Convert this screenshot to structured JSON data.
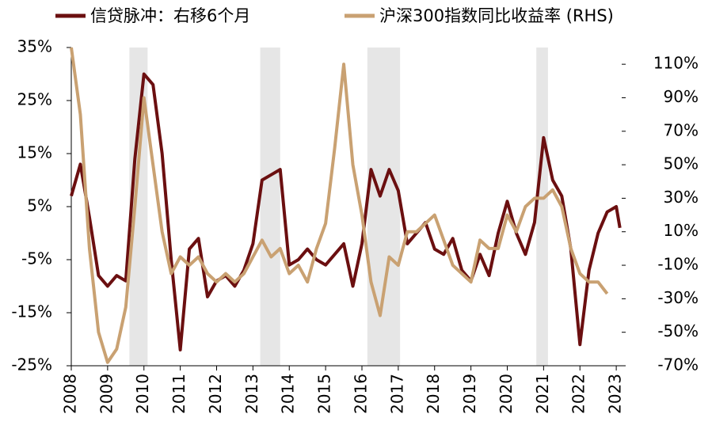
{
  "chart_data": {
    "type": "line",
    "x": [
      2008.0,
      2008.25,
      2008.5,
      2008.75,
      2009.0,
      2009.25,
      2009.5,
      2009.75,
      2010.0,
      2010.25,
      2010.5,
      2010.75,
      2011.0,
      2011.25,
      2011.5,
      2011.75,
      2012.0,
      2012.25,
      2012.5,
      2012.75,
      2013.0,
      2013.25,
      2013.5,
      2013.75,
      2014.0,
      2014.25,
      2014.5,
      2014.75,
      2015.0,
      2015.25,
      2015.5,
      2015.75,
      2016.0,
      2016.25,
      2016.5,
      2016.75,
      2017.0,
      2017.25,
      2017.5,
      2017.75,
      2018.0,
      2018.25,
      2018.5,
      2018.75,
      2019.0,
      2019.25,
      2019.5,
      2019.75,
      2020.0,
      2020.25,
      2020.5,
      2020.75,
      2021.0,
      2021.25,
      2021.5,
      2021.75,
      2022.0,
      2022.25,
      2022.5,
      2022.75,
      2023.0,
      2023.1
    ],
    "series": [
      {
        "name": "信贷脉冲：右移6个月",
        "color": "#6b0f10",
        "axis": "y",
        "values": [
          7,
          13,
          3,
          -8,
          -10,
          -8,
          -9,
          14,
          30,
          28,
          15,
          -5,
          -22,
          -3,
          -1,
          -12,
          -9,
          -8,
          -10,
          -7,
          -2,
          10,
          11,
          12,
          -6,
          -5,
          -3,
          -5,
          -6,
          -4,
          -2,
          -10,
          -2,
          12,
          7,
          12,
          8,
          -2,
          0,
          2,
          -3,
          -4,
          -1,
          -7,
          -9,
          -4,
          -8,
          0,
          6,
          0,
          -4,
          2,
          18,
          10,
          7,
          -3,
          -21,
          -7,
          0,
          4,
          5,
          1
        ]
      },
      {
        "name": "沪深300指数同比收益率 (RHS)",
        "color": "#c9a172",
        "axis": "y2",
        "values": [
          120,
          80,
          0,
          -50,
          -68,
          -60,
          -35,
          25,
          90,
          50,
          10,
          -15,
          -5,
          -10,
          -5,
          -15,
          -20,
          -15,
          -20,
          -15,
          -5,
          5,
          -5,
          0,
          -15,
          -10,
          -20,
          0,
          15,
          60,
          110,
          50,
          20,
          -20,
          -40,
          -5,
          -10,
          10,
          10,
          15,
          20,
          5,
          -10,
          -15,
          -20,
          5,
          0,
          0,
          20,
          10,
          25,
          30,
          30,
          35,
          25,
          0,
          -15,
          -20,
          -20,
          -27,
          null,
          null
        ]
      }
    ],
    "xlim": [
      2008,
      2023.15
    ],
    "xticks": [
      2008,
      2009,
      2010,
      2011,
      2012,
      2013,
      2014,
      2015,
      2016,
      2017,
      2018,
      2019,
      2020,
      2021,
      2022,
      2023
    ],
    "ylim": [
      -25,
      35
    ],
    "yticks": [
      {
        "value": 35,
        "label": "35%"
      },
      {
        "value": 25,
        "label": "25%"
      },
      {
        "value": 15,
        "label": "15%"
      },
      {
        "value": 5,
        "label": "5%"
      },
      {
        "value": -5,
        "label": "-5%"
      },
      {
        "value": -15,
        "label": "-15%"
      },
      {
        "value": -25,
        "label": "-25%"
      }
    ],
    "y2lim": [
      -70,
      120
    ],
    "y2ticks": [
      {
        "value": 110,
        "label": "110%"
      },
      {
        "value": 90,
        "label": "90%"
      },
      {
        "value": 70,
        "label": "70%"
      },
      {
        "value": 50,
        "label": "50%"
      },
      {
        "value": 30,
        "label": "30%"
      },
      {
        "value": 10,
        "label": "10%"
      },
      {
        "value": -10,
        "label": "-10%"
      },
      {
        "value": -30,
        "label": "-30%"
      },
      {
        "value": -50,
        "label": "-50%"
      },
      {
        "value": -70,
        "label": "-70%"
      }
    ],
    "shaded_periods": [
      [
        2009.6,
        2010.1
      ],
      [
        2013.2,
        2013.75
      ],
      [
        2016.15,
        2017.05
      ],
      [
        2020.8,
        2021.12
      ]
    ],
    "shade_color": "#e6e6e6",
    "legend": "top"
  }
}
